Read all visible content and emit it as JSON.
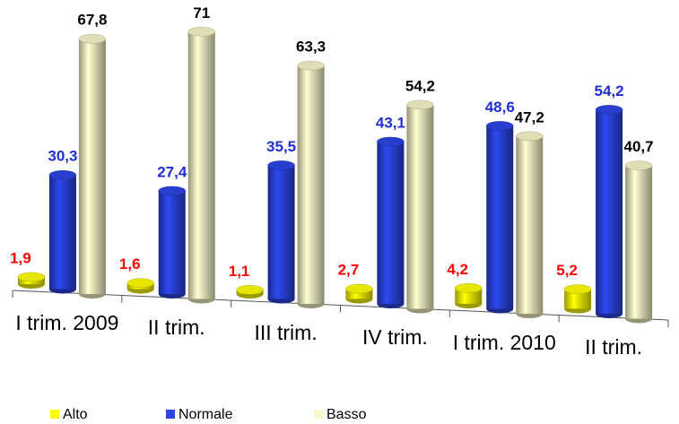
{
  "chart_data": {
    "type": "bar",
    "categories": [
      "I trim. 2009",
      "II trim.",
      "III trim.",
      "IV trim.",
      "I trim. 2010",
      "II trim."
    ],
    "ylim": [
      0,
      75
    ],
    "legend": "bottom",
    "series": [
      {
        "name": "Alto",
        "color": "#ffff00",
        "label_color": "#ff0000",
        "values": [
          1.9,
          1.6,
          1.1,
          2.7,
          4.2,
          5.2
        ],
        "value_labels": [
          "1,9",
          "1,6",
          "1,1",
          "2,7",
          "4,2",
          "5,2"
        ]
      },
      {
        "name": "Normale",
        "color": "#2b45e6",
        "label_color": "#1f2fd6",
        "values": [
          30.3,
          27.4,
          35.5,
          43.1,
          48.6,
          54.2
        ],
        "value_labels": [
          "30,3",
          "27,4",
          "35,5",
          "43,1",
          "48,6",
          "54,2"
        ]
      },
      {
        "name": "Basso",
        "color": "#f8f7c8",
        "label_color": "#000000",
        "values": [
          67.8,
          71,
          63.3,
          54.2,
          47.2,
          40.7
        ],
        "value_labels": [
          "67,8",
          "71",
          "63,3",
          "54,2",
          "47,2",
          "40,7"
        ]
      }
    ]
  }
}
